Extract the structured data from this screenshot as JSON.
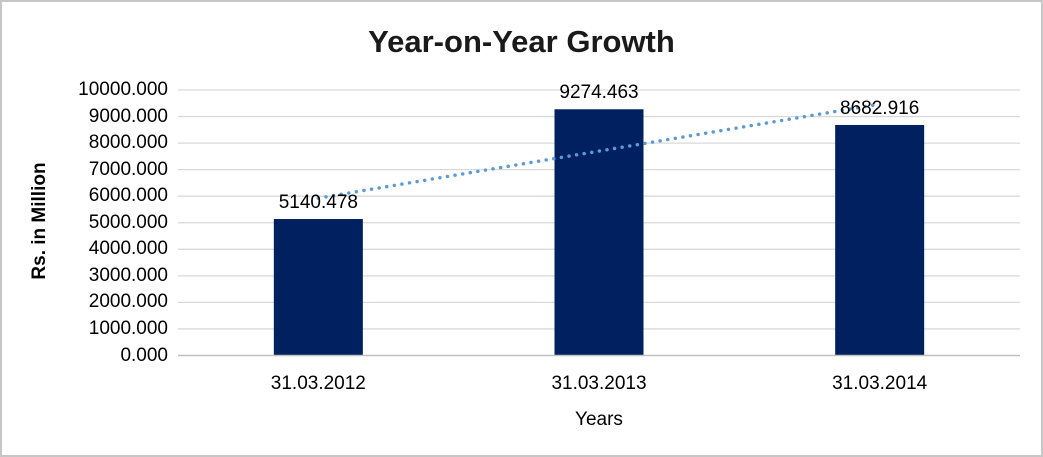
{
  "frame": {
    "background": "#ffffff",
    "border_color": "#c6c6c6"
  },
  "chart_data": {
    "type": "bar",
    "title": "Year-on-Year Growth",
    "xlabel": "Years",
    "ylabel": "Rs. in Million",
    "categories": [
      "31.03.2012",
      "31.03.2013",
      "31.03.2014"
    ],
    "values": [
      5140.478,
      9274.463,
      8682.916
    ],
    "data_labels": [
      "5140.478",
      "9274.463",
      "8682.916"
    ],
    "ylim": [
      0,
      10000
    ],
    "ytick_step": 1000,
    "ytick_decimals": 3,
    "grid": true,
    "legend": "none",
    "trendline": {
      "style": "dotted",
      "color": "#5B9BD5"
    },
    "colors": {
      "bar": "#002060",
      "gridline": "#d9d9d9",
      "axis_line": "#bfbfbf",
      "text": "#000000",
      "title": "#1a1a1a"
    }
  }
}
